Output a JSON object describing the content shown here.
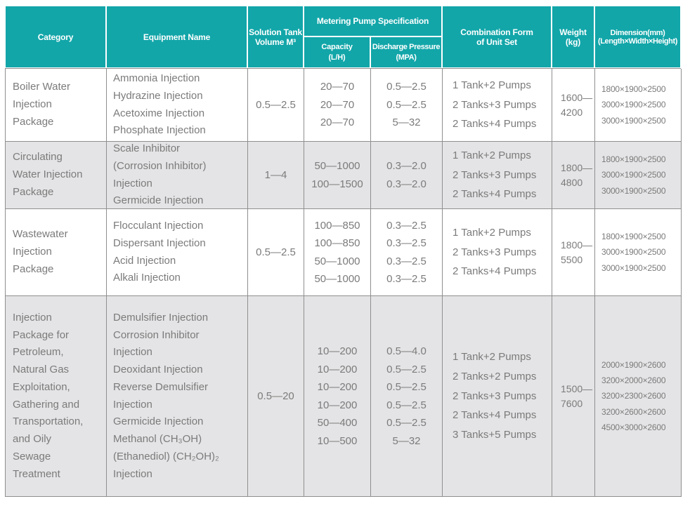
{
  "colors": {
    "header_teal": "#12A6A9",
    "row_alt_gray": "#E4E4E6",
    "border_gray": "#8F8F8F",
    "text_gray": "#7B7B7B",
    "header_text": "#FFFFFF"
  },
  "table": {
    "header": {
      "category": "Category",
      "equipment_name": "Equipment Name",
      "solution_tank_lines": [
        "Solution Tank",
        "Volume M³"
      ],
      "metering_pump_spec": "Metering Pump Specification",
      "capacity_lines": [
        "Capacity",
        "(L/H)"
      ],
      "discharge_pressure_lines": [
        "Discharge Pressure",
        "(MPA)"
      ],
      "combination_lines": [
        "Combination Form",
        "of Unit Set"
      ],
      "weight_lines": [
        "Weight",
        "(kg)"
      ],
      "dimension_lines": [
        "Dimension(mm)",
        "(Length×Width×Height)"
      ]
    },
    "rows": [
      {
        "category_lines": [
          "Boiler Water",
          "Injection",
          "Package"
        ],
        "equipment_lines": [
          "Ammonia Injection",
          "Hydrazine Injection",
          "Acetoxime Injection",
          "Phosphate Injection"
        ],
        "tank_volume": "0.5—2.5",
        "capacity_lines": [
          "20—70",
          "20—70",
          "20—70"
        ],
        "pressure_lines": [
          "0.5—2.5",
          "0.5—2.5",
          "5—32"
        ],
        "combination_lines": [
          "1 Tank+2 Pumps",
          "2 Tanks+3 Pumps",
          "2 Tanks+4 Pumps"
        ],
        "weight_lines": [
          "1600—",
          "4200"
        ],
        "dimension_lines": [
          "1800×1900×2500",
          "3000×1900×2500",
          "3000×1900×2500"
        ]
      },
      {
        "category_lines": [
          "Circulating",
          "Water Injection",
          "Package"
        ],
        "equipment_lines": [
          "Scale Inhibitor",
          "(Corrosion Inhibitor)",
          "Injection",
          "Germicide Injection"
        ],
        "tank_volume": "1—4",
        "capacity_lines": [
          "50—1000",
          "100—1500"
        ],
        "pressure_lines": [
          "0.3—2.0",
          "0.3—2.0"
        ],
        "combination_lines": [
          "1 Tank+2 Pumps",
          "2 Tanks+3 Pumps",
          "2 Tanks+4 Pumps"
        ],
        "weight_lines": [
          "1800—",
          "4800"
        ],
        "dimension_lines": [
          "1800×1900×2500",
          "3000×1900×2500",
          "3000×1900×2500"
        ]
      },
      {
        "category_lines": [
          "Wastewater",
          "Injection",
          "Package"
        ],
        "equipment_lines": [
          "Flocculant Injection",
          "Dispersant Injection",
          "Acid Injection",
          "Alkali Injection"
        ],
        "tank_volume": "0.5—2.5",
        "capacity_lines": [
          "100—850",
          "100—850",
          "50—1000",
          "50—1000"
        ],
        "pressure_lines": [
          "0.3—2.5",
          "0.3—2.5",
          "0.3—2.5",
          "0.3—2.5"
        ],
        "combination_lines": [
          "1 Tank+2 Pumps",
          "2 Tanks+3 Pumps",
          "2 Tanks+4 Pumps"
        ],
        "weight_lines": [
          "1800—",
          "5500"
        ],
        "dimension_lines": [
          "1800×1900×2500",
          "3000×1900×2500",
          "3000×1900×2500"
        ]
      },
      {
        "category_lines": [
          "Injection",
          "Package for",
          "Petroleum,",
          "Natural Gas",
          "Exploitation,",
          "Gathering and",
          "Transportation,",
          "and Oily",
          "Sewage",
          "Treatment"
        ],
        "equipment_lines": [
          "Demulsifier Injection",
          "Corrosion Inhibitor",
          "Injection",
          "Deoxidant Injection",
          "Reverse Demulsifier",
          "Injection",
          "Germicide Injection",
          "Methanol (CH₃OH)",
          "(Ethanediol) (CH₂OH)₂",
          "Injection"
        ],
        "tank_volume": "0.5—20",
        "capacity_lines": [
          "10—200",
          "10—200",
          "10—200",
          "10—200",
          "50—400",
          "10—500"
        ],
        "pressure_lines": [
          "0.5—4.0",
          "0.5—2.5",
          "0.5—2.5",
          "0.5—2.5",
          "0.5—2.5",
          "5—32"
        ],
        "combination_lines": [
          "1 Tank+2 Pumps",
          "2 Tanks+2 Pumps",
          "2 Tanks+3 Pumps",
          "2 Tanks+4 Pumps",
          "3 Tanks+5 Pumps"
        ],
        "weight_lines": [
          "1500—",
          "7600"
        ],
        "dimension_lines": [
          "2000×1900×2600",
          "3200×2000×2600",
          "3200×2300×2600",
          "3200×2600×2600",
          "4500×3000×2600"
        ]
      }
    ]
  }
}
